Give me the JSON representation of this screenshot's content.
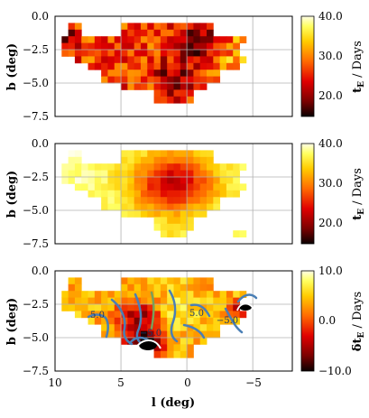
{
  "chart_data": [
    {
      "type": "heatmap",
      "panel": "top",
      "quantity": "mean event timescale",
      "xlim": [
        10,
        -8
      ],
      "ylim": [
        -7.5,
        0.0
      ],
      "xlabel": "",
      "ylabel": "b (deg)",
      "yticks": [
        "0.0",
        "−2.5",
        "−5.0",
        "−7.5"
      ],
      "grid": true,
      "colormap": "hot",
      "colorbar": {
        "label_main": "t",
        "label_sub": "E",
        "label_unit": " / Days",
        "range": [
          15,
          40
        ],
        "ticks": [
          "20.0",
          "30.0",
          "40.0"
        ]
      },
      "footprint": {
        "l_rows": [
          [
            -5.5,
            9.0
          ],
          [
            -4.5,
            9.5
          ],
          [
            -4.0,
            9.5
          ],
          [
            -4.5,
            8.5
          ],
          [
            -4.0,
            7.5
          ],
          [
            -2.5,
            6.5
          ],
          [
            -1.5,
            5.0
          ],
          [
            -0.5,
            2.5
          ]
        ],
        "b_rows": [
          -1.0,
          -1.7,
          -2.4,
          -3.1,
          -3.8,
          -4.5,
          -5.2,
          -5.9
        ]
      },
      "annotation": "regions of low tE (~15-20 days) near (l,b)=(9.5,-1.5), (-1,-2), (1,-4.5); higher tE (~30-35 days) at l<-3"
    },
    {
      "type": "heatmap",
      "panel": "middle",
      "quantity": "model event timescale",
      "xlim": [
        10,
        -8
      ],
      "ylim": [
        -7.5,
        0.0
      ],
      "xlabel": "",
      "ylabel": "b (deg)",
      "yticks": [
        "0.0",
        "−2.5",
        "−5.0",
        "−7.5"
      ],
      "grid": true,
      "colormap": "hot",
      "colorbar": {
        "label_main": "t",
        "label_sub": "E",
        "label_unit": " / Days",
        "range": [
          15,
          40
        ],
        "ticks": [
          "20.0",
          "30.0",
          "40.0"
        ]
      },
      "annotation": "smooth gradient: ~20 days near (l,b)=(1,-3), rising to ~35-40 days at edges"
    },
    {
      "type": "heatmap",
      "panel": "bottom",
      "quantity": "residual event timescale",
      "xlim": [
        10,
        -8
      ],
      "ylim": [
        -7.5,
        0.0
      ],
      "xlabel": "l (deg)",
      "ylabel": "b (deg)",
      "xticks": [
        "10",
        "5",
        "0",
        "−5"
      ],
      "yticks": [
        "0.0",
        "−2.5",
        "−5.0",
        "−7.5"
      ],
      "grid": true,
      "colormap": "hot",
      "colorbar": {
        "label_main": "δt",
        "label_sub": "E",
        "label_unit": " / Days",
        "range": [
          -10,
          10
        ],
        "ticks": [
          "−10.0",
          "0.0",
          "10.0"
        ]
      },
      "contours": [
        {
          "level": 5.0,
          "label": "5.0",
          "color": "#4a7fb5"
        },
        {
          "level": 0.0,
          "color": "#7aa05a"
        },
        {
          "level": -5.0,
          "label": "−5.0",
          "color": "#4a7fb5"
        }
      ],
      "annotation": "negative residuals (~-10) near (l,b)=(3,-5.5) and (-4,-2.8); positive (~+10) at edges"
    }
  ],
  "labels": {
    "xticks": [
      "10",
      "5",
      "0",
      "−5"
    ],
    "yticks": [
      "0.0",
      "−2.5",
      "−5.0",
      "−7.5"
    ],
    "xlabel": "l (deg)",
    "ylabel": "b (deg)",
    "cbar1": [
      "40.0",
      "30.0",
      "20.0"
    ],
    "cbar3": [
      "10.0",
      "0.0",
      "−10.0"
    ],
    "contour_labels": [
      "5.0",
      "−5.0",
      "−5.0",
      "5.0",
      "−5.0"
    ]
  }
}
